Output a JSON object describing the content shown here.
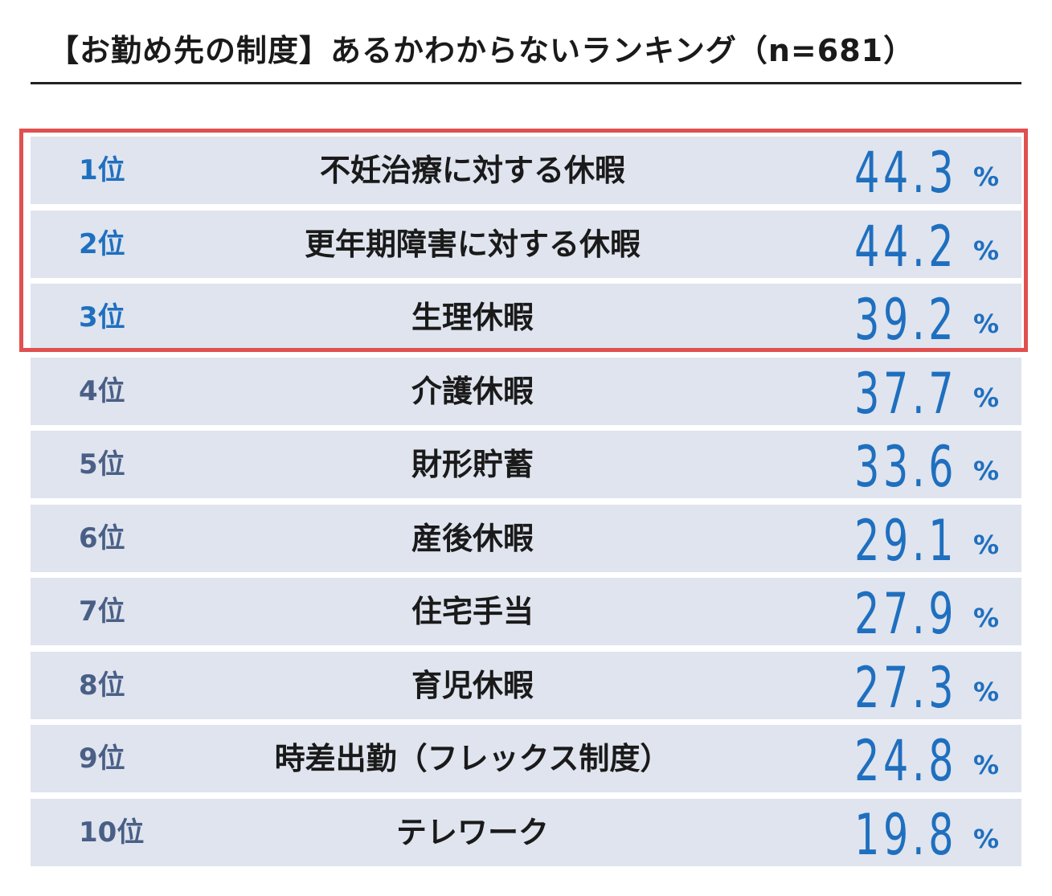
{
  "title": "【お勤め先の制度】あるかわからないランキング（n=681）",
  "colors": {
    "row_bg": "#dfe4ee",
    "value_blue": "#1f6fbf",
    "rank_top": "#1f6fbf",
    "rank_other": "#4a5f86",
    "highlight_border": "#e05050"
  },
  "highlight": {
    "ranks": [
      1,
      2,
      3
    ]
  },
  "chart_data": {
    "type": "table",
    "title": "【お勤め先の制度】あるかわからないランキング（n=681）",
    "unit": "%",
    "rows": [
      {
        "rank": "1位",
        "label": "不妊治療に対する休暇",
        "value": "44.3"
      },
      {
        "rank": "2位",
        "label": "更年期障害に対する休暇",
        "value": "44.2"
      },
      {
        "rank": "3位",
        "label": "生理休暇",
        "value": "39.2"
      },
      {
        "rank": "4位",
        "label": "介護休暇",
        "value": "37.7"
      },
      {
        "rank": "5位",
        "label": "財形貯蓄",
        "value": "33.6"
      },
      {
        "rank": "6位",
        "label": "産後休暇",
        "value": "29.1"
      },
      {
        "rank": "7位",
        "label": "住宅手当",
        "value": "27.9"
      },
      {
        "rank": "8位",
        "label": "育児休暇",
        "value": "27.3"
      },
      {
        "rank": "9位",
        "label": "時差出勤（フレックス制度）",
        "value": "24.8"
      },
      {
        "rank": "10位",
        "label": "テレワーク",
        "value": "19.8"
      }
    ]
  }
}
